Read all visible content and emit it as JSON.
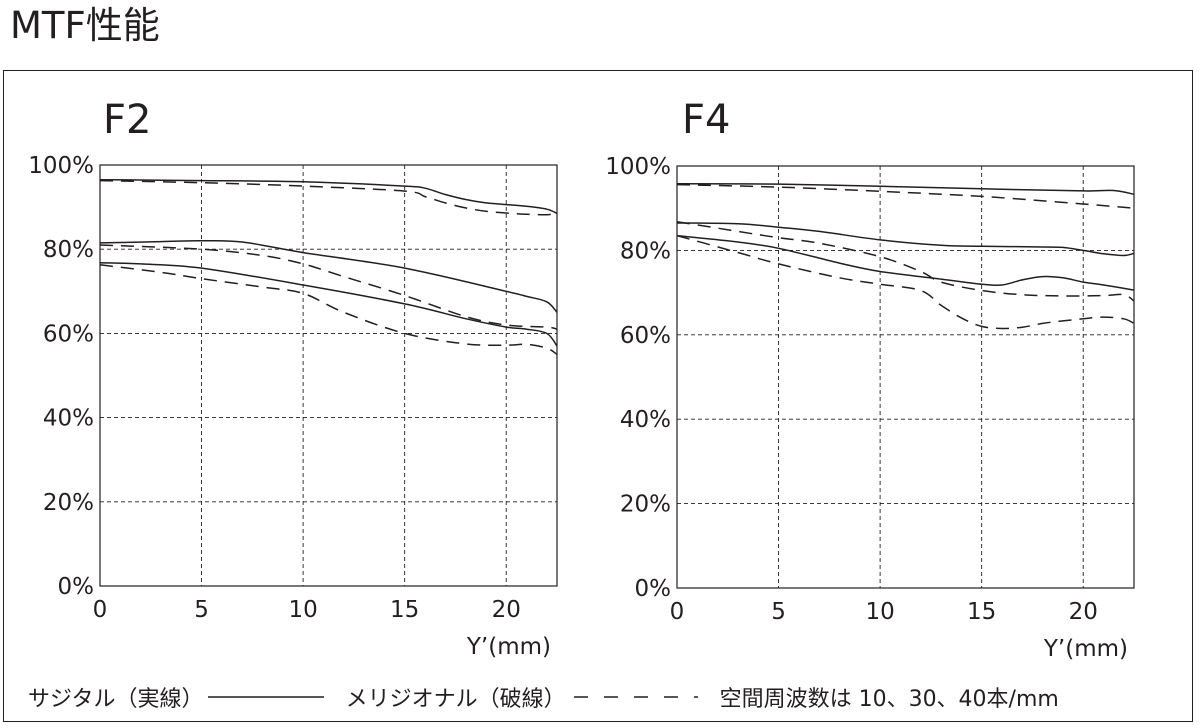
{
  "page": {
    "title": "MTF性能"
  },
  "legend": {
    "sagittal": "サジタル（実線）",
    "meridional": "メリジオナル（破線）",
    "spatial": "空間周波数は 10、30、40本/mm"
  },
  "chart_data": [
    {
      "type": "line",
      "title": "F2",
      "xlabel": "Y’(mm)",
      "ylabel": "",
      "xlim": [
        0,
        22.5
      ],
      "ylim": [
        0,
        100
      ],
      "xticks": [
        "0",
        "5",
        "10",
        "15",
        "20"
      ],
      "yticks": [
        "0%",
        "20%",
        "40%",
        "60%",
        "80%",
        "100%"
      ],
      "grid": true,
      "series": [
        {
          "style": "solid",
          "x": [
            0,
            5,
            10,
            15,
            16,
            17,
            18,
            19,
            20,
            21,
            22,
            22.5
          ],
          "y": [
            96.5,
            96.3,
            96,
            95,
            94.5,
            93,
            91.8,
            91,
            90.6,
            90.2,
            89.5,
            88.5
          ]
        },
        {
          "style": "dashed",
          "x": [
            0,
            5,
            10,
            15,
            16,
            17,
            18,
            19,
            20,
            21,
            22,
            22.5
          ],
          "y": [
            96.3,
            95.8,
            95,
            93.8,
            92.5,
            91,
            89.8,
            89,
            88.6,
            88.3,
            88.2,
            88.5
          ]
        },
        {
          "style": "solid",
          "x": [
            0,
            3,
            5,
            7,
            10,
            15,
            20,
            21,
            22,
            22.5
          ],
          "y": [
            81.5,
            81.8,
            82,
            81.7,
            79.2,
            75.5,
            70,
            68.8,
            67.5,
            65
          ]
        },
        {
          "style": "dashed",
          "x": [
            0,
            5,
            8,
            10,
            12,
            15,
            18,
            20,
            22,
            22.5
          ],
          "y": [
            81,
            80,
            78.5,
            76.5,
            73.5,
            69,
            64,
            62,
            61.5,
            61
          ]
        },
        {
          "style": "solid",
          "x": [
            0,
            2,
            5,
            10,
            15,
            18,
            20,
            21,
            22,
            22.5
          ],
          "y": [
            76.8,
            76.5,
            75.5,
            71.5,
            67,
            63.5,
            61.5,
            61,
            60,
            57
          ]
        },
        {
          "style": "dashed",
          "x": [
            0,
            3,
            5,
            8,
            10,
            12,
            15,
            18,
            20,
            21,
            22,
            22.5
          ],
          "y": [
            76.3,
            74.5,
            73,
            71,
            69.5,
            65,
            60,
            57.5,
            57.2,
            57.4,
            56.5,
            55
          ]
        }
      ]
    },
    {
      "type": "line",
      "title": "F4",
      "xlabel": "Y’(mm)",
      "ylabel": "",
      "xlim": [
        0,
        22.5
      ],
      "ylim": [
        0,
        100
      ],
      "xticks": [
        "0",
        "5",
        "10",
        "15",
        "20"
      ],
      "yticks": [
        "0%",
        "20%",
        "40%",
        "60%",
        "80%",
        "100%"
      ],
      "grid": true,
      "series": [
        {
          "style": "solid",
          "x": [
            0,
            5,
            10,
            15,
            20,
            21.5,
            22.5
          ],
          "y": [
            95.8,
            95.7,
            95.2,
            94.6,
            94.1,
            94.2,
            93.3
          ]
        },
        {
          "style": "dashed",
          "x": [
            0,
            5,
            10,
            15,
            20,
            22.5
          ],
          "y": [
            95.6,
            95,
            94,
            92.8,
            91,
            90
          ]
        },
        {
          "style": "solid",
          "x": [
            0,
            3,
            5,
            7,
            10,
            13,
            15,
            18,
            19,
            20,
            21,
            22,
            22.5
          ],
          "y": [
            86.5,
            86.3,
            85.5,
            84.5,
            82.5,
            81.2,
            81,
            80.8,
            80.7,
            80,
            79.2,
            78.8,
            79.3
          ]
        },
        {
          "style": "dashed",
          "x": [
            0,
            3,
            5,
            7,
            10,
            12,
            13,
            15,
            17,
            19,
            21,
            22,
            22.5
          ],
          "y": [
            86.8,
            84.5,
            83,
            81.7,
            78.5,
            75,
            72.5,
            70.5,
            69.5,
            69.2,
            69.3,
            69.5,
            68
          ]
        },
        {
          "style": "solid",
          "x": [
            0,
            3,
            5,
            8,
            10,
            13,
            15,
            16,
            17,
            18,
            19,
            20,
            21,
            22.5
          ],
          "y": [
            83.5,
            82,
            80.5,
            77,
            75,
            73.2,
            72,
            71.8,
            73,
            73.8,
            73.5,
            72.5,
            71.8,
            70.6
          ]
        },
        {
          "style": "dashed",
          "x": [
            0,
            3,
            5,
            8,
            10,
            12,
            13,
            14,
            15,
            16,
            17,
            18,
            19,
            20,
            21,
            22,
            22.5
          ],
          "y": [
            83.5,
            79.5,
            76.8,
            73.5,
            72,
            70.5,
            67,
            64,
            62,
            61.5,
            61.8,
            62.7,
            63.3,
            63.8,
            64.2,
            63.8,
            62.7
          ]
        }
      ]
    }
  ]
}
